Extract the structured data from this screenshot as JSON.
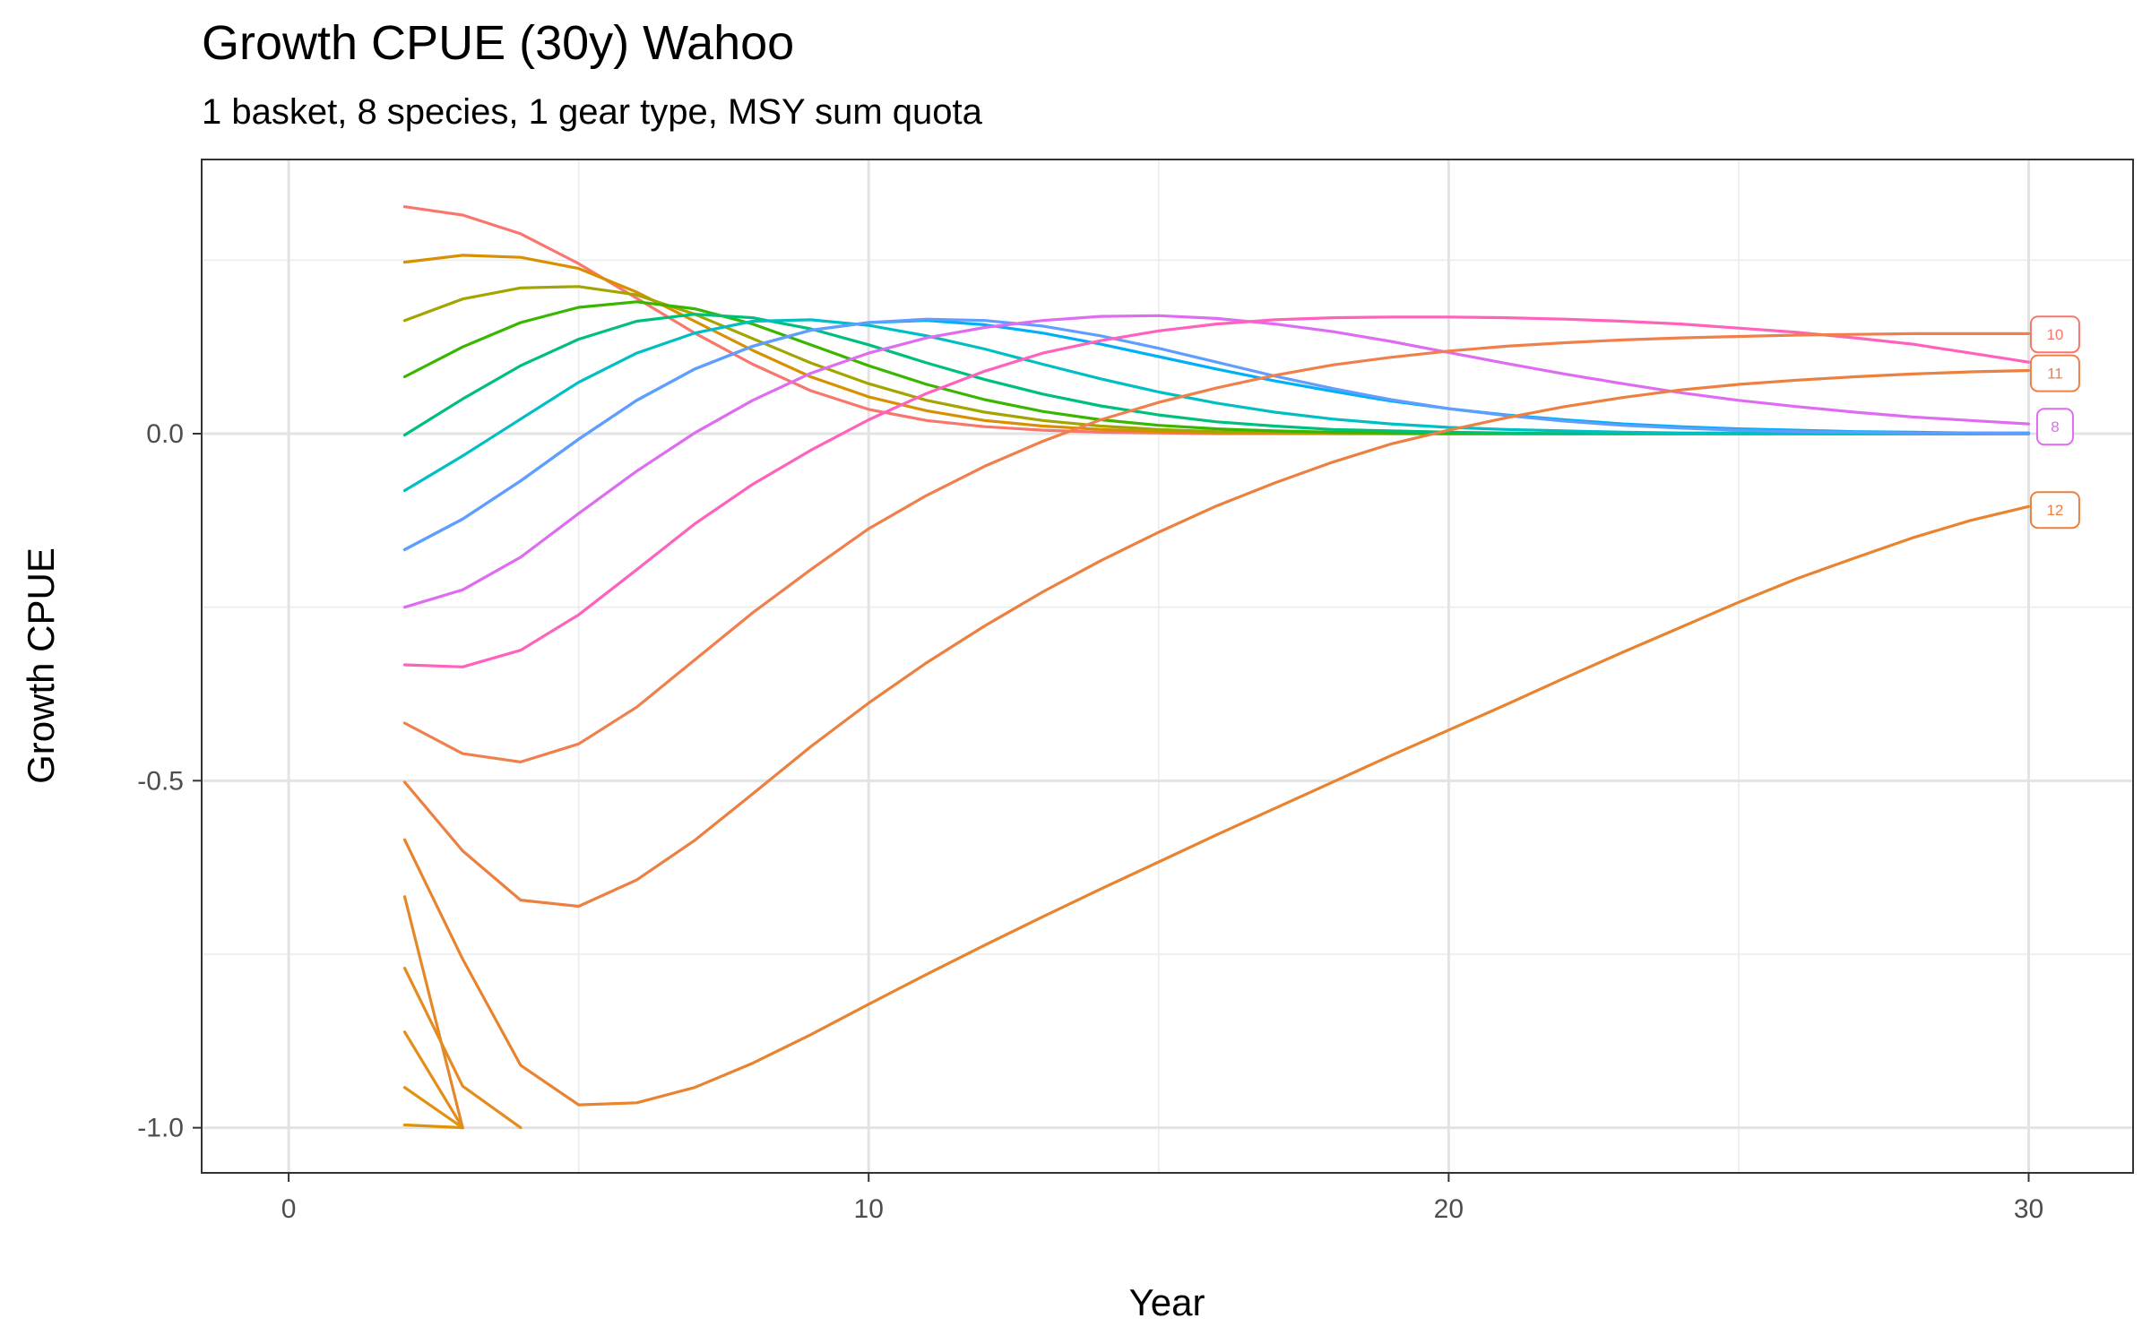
{
  "chart_data": {
    "type": "line",
    "title": "Growth CPUE (30y) Wahoo",
    "subtitle": "1 basket, 8 species, 1 gear type, MSY sum quota",
    "xlabel": "Year",
    "ylabel": "Growth CPUE",
    "xlim": [
      -1.5,
      31.8
    ],
    "ylim": [
      -1.065,
      0.395
    ],
    "x_ticks": [
      0,
      10,
      20,
      30
    ],
    "x_tick_labels": [
      "0",
      "10",
      "20",
      "30"
    ],
    "y_ticks": [
      -1.0,
      -0.5,
      0.0
    ],
    "y_tick_labels": [
      "-1.0",
      "-0.5",
      "0.0"
    ],
    "grid": true,
    "legend": "none",
    "end_labels": [
      {
        "text": "10",
        "x": 30.3,
        "y": 0.143,
        "color": "#F8766D"
      },
      {
        "text": "11",
        "x": 30.3,
        "y": 0.087,
        "color": "#EF7F4B"
      },
      {
        "text": "8",
        "x": 30.3,
        "y": 0.01,
        "color": "#DE6CF1"
      },
      {
        "text": "12",
        "x": 30.3,
        "y": -0.11,
        "color": "#EB8040"
      }
    ],
    "series": [
      {
        "color": "#F8766D",
        "x": [
          2,
          3,
          4,
          5,
          6,
          7,
          8,
          9,
          10,
          11,
          12,
          13,
          14,
          15,
          16,
          17,
          18,
          19,
          20,
          21,
          22,
          23,
          24,
          25,
          26,
          27,
          28,
          29,
          30
        ],
        "values": [
          0.327,
          0.315,
          0.288,
          0.245,
          0.195,
          0.145,
          0.1,
          0.062,
          0.035,
          0.019,
          0.01,
          0.005,
          0.002,
          0.001,
          0.0,
          0.0,
          0,
          0,
          0,
          0,
          0,
          0,
          0,
          0,
          0,
          0,
          0,
          0,
          0
        ]
      },
      {
        "color": "#D89000",
        "x": [
          2,
          3,
          4,
          5,
          6,
          7,
          8,
          9,
          10,
          11,
          12,
          13,
          14,
          15,
          16,
          17,
          18,
          19,
          20,
          21,
          22,
          23,
          24,
          25,
          26,
          27,
          28,
          29,
          30
        ],
        "values": [
          0.247,
          0.257,
          0.254,
          0.238,
          0.204,
          0.162,
          0.12,
          0.082,
          0.053,
          0.033,
          0.019,
          0.011,
          0.006,
          0.003,
          0.001,
          0.001,
          0.0,
          0,
          0,
          0,
          0,
          0,
          0,
          0,
          0,
          0,
          0,
          0,
          0
        ]
      },
      {
        "color": "#A3A500",
        "x": [
          2,
          3,
          4,
          5,
          6,
          7,
          8,
          9,
          10,
          11,
          12,
          13,
          14,
          15,
          16,
          17,
          18,
          19,
          20,
          21,
          22,
          23,
          24,
          25,
          26,
          27,
          28,
          29,
          30
        ],
        "values": [
          0.163,
          0.194,
          0.21,
          0.212,
          0.2,
          0.172,
          0.137,
          0.102,
          0.072,
          0.048,
          0.031,
          0.019,
          0.011,
          0.006,
          0.003,
          0.002,
          0.001,
          0.0,
          0,
          0,
          0,
          0,
          0,
          0,
          0,
          0,
          0,
          0,
          0
        ]
      },
      {
        "color": "#39B600",
        "x": [
          2,
          3,
          4,
          5,
          6,
          7,
          8,
          9,
          10,
          11,
          12,
          13,
          14,
          15,
          16,
          17,
          18,
          19,
          20,
          21,
          22,
          23,
          24,
          25,
          26,
          27,
          28,
          29,
          30
        ],
        "values": [
          0.082,
          0.125,
          0.16,
          0.182,
          0.19,
          0.18,
          0.158,
          0.128,
          0.098,
          0.071,
          0.049,
          0.032,
          0.02,
          0.012,
          0.007,
          0.004,
          0.002,
          0.001,
          0.0,
          0,
          0,
          0,
          0,
          0,
          0,
          0,
          0,
          0,
          0
        ]
      },
      {
        "color": "#00BF7D",
        "x": [
          2,
          3,
          4,
          5,
          6,
          7,
          8,
          9,
          10,
          11,
          12,
          13,
          14,
          15,
          16,
          17,
          18,
          19,
          20,
          21,
          22,
          23,
          24,
          25,
          26,
          27,
          28,
          29,
          30
        ],
        "values": [
          -0.002,
          0.05,
          0.098,
          0.136,
          0.162,
          0.172,
          0.167,
          0.151,
          0.128,
          0.102,
          0.078,
          0.057,
          0.04,
          0.027,
          0.017,
          0.011,
          0.006,
          0.004,
          0.002,
          0.001,
          0.0,
          0,
          0,
          0,
          0,
          0,
          0,
          0,
          0
        ]
      },
      {
        "color": "#00BFC4",
        "x": [
          2,
          3,
          4,
          5,
          6,
          7,
          8,
          9,
          10,
          11,
          12,
          13,
          14,
          15,
          16,
          17,
          18,
          19,
          20,
          21,
          22,
          23,
          24,
          25,
          26,
          27,
          28,
          29,
          30
        ],
        "values": [
          -0.082,
          -0.032,
          0.021,
          0.074,
          0.116,
          0.145,
          0.162,
          0.164,
          0.156,
          0.141,
          0.122,
          0.1,
          0.079,
          0.06,
          0.044,
          0.031,
          0.021,
          0.014,
          0.009,
          0.006,
          0.004,
          0.002,
          0.001,
          0.001,
          0.0,
          0,
          0,
          0,
          0
        ]
      },
      {
        "color": "#00B0F6",
        "x": [
          2,
          3,
          4,
          5,
          6,
          7,
          8,
          9,
          10,
          11,
          12,
          13,
          14,
          15,
          16,
          17,
          18,
          19,
          20,
          21,
          22,
          23,
          24,
          25,
          26,
          27,
          28,
          29,
          30
        ],
        "values": [
          -0.167,
          -0.123,
          -0.068,
          -0.008,
          0.048,
          0.093,
          0.126,
          0.149,
          0.16,
          0.163,
          0.157,
          0.145,
          0.129,
          0.111,
          0.093,
          0.076,
          0.061,
          0.047,
          0.036,
          0.027,
          0.02,
          0.014,
          0.01,
          0.007,
          0.005,
          0.003,
          0.002,
          0.001,
          0.001
        ]
      },
      {
        "color": "#619CFF",
        "x": [
          2,
          3,
          4,
          5,
          6,
          7,
          8,
          9,
          10,
          11,
          12,
          13,
          14,
          15,
          16,
          17,
          18,
          19,
          20,
          21,
          22,
          23,
          24,
          25,
          26,
          27,
          28,
          29,
          30
        ],
        "values": [
          -0.167,
          -0.123,
          -0.068,
          -0.008,
          0.048,
          0.093,
          0.126,
          0.149,
          0.16,
          0.165,
          0.163,
          0.155,
          0.141,
          0.123,
          0.103,
          0.083,
          0.065,
          0.049,
          0.036,
          0.026,
          0.018,
          0.012,
          0.008,
          0.005,
          0.003,
          0.002,
          0.001,
          0.001,
          0.0
        ]
      },
      {
        "color": "#DE6CF1",
        "x": [
          2,
          3,
          4,
          5,
          6,
          7,
          8,
          9,
          10,
          11,
          12,
          13,
          14,
          15,
          16,
          17,
          18,
          19,
          20,
          21,
          22,
          23,
          24,
          25,
          26,
          27,
          28,
          29,
          30
        ],
        "values": [
          -0.25,
          -0.225,
          -0.178,
          -0.115,
          -0.054,
          0.001,
          0.048,
          0.087,
          0.116,
          0.138,
          0.153,
          0.163,
          0.169,
          0.17,
          0.166,
          0.158,
          0.147,
          0.133,
          0.117,
          0.101,
          0.086,
          0.072,
          0.059,
          0.048,
          0.039,
          0.031,
          0.024,
          0.019,
          0.014
        ]
      },
      {
        "color": "#FF62BC",
        "x": [
          2,
          3,
          4,
          5,
          6,
          7,
          8,
          9,
          10,
          11,
          12,
          13,
          14,
          15,
          16,
          17,
          18,
          19,
          20,
          21,
          22,
          23,
          24,
          25,
          26,
          27,
          28,
          29,
          30
        ],
        "values": [
          -0.333,
          -0.336,
          -0.312,
          -0.261,
          -0.196,
          -0.13,
          -0.073,
          -0.024,
          0.02,
          0.058,
          0.09,
          0.116,
          0.134,
          0.148,
          0.158,
          0.164,
          0.167,
          0.168,
          0.168,
          0.167,
          0.165,
          0.162,
          0.158,
          0.152,
          0.146,
          0.138,
          0.129,
          0.116,
          0.103
        ]
      },
      {
        "color": "#EF7F4B",
        "x": [
          2,
          3,
          4,
          5,
          6,
          7,
          8,
          9,
          10,
          11,
          12,
          13,
          14,
          15,
          16,
          17,
          18,
          19,
          20,
          21,
          22,
          23,
          24,
          25,
          26,
          27,
          28,
          29,
          30
        ],
        "values": [
          -0.417,
          -0.461,
          -0.473,
          -0.447,
          -0.394,
          -0.326,
          -0.258,
          -0.196,
          -0.137,
          -0.089,
          -0.047,
          -0.011,
          0.02,
          0.045,
          0.066,
          0.084,
          0.099,
          0.11,
          0.119,
          0.126,
          0.131,
          0.135,
          0.138,
          0.14,
          0.142,
          0.143,
          0.144,
          0.144,
          0.144
        ]
      },
      {
        "color": "#EB8040",
        "x": [
          2,
          3,
          4,
          5,
          6,
          7,
          8,
          9,
          10,
          11,
          12,
          13,
          14,
          15,
          16,
          17,
          18,
          19,
          20,
          21,
          22,
          23,
          24,
          25,
          26,
          27,
          28,
          29,
          30
        ],
        "values": [
          -0.502,
          -0.601,
          -0.672,
          -0.681,
          -0.643,
          -0.586,
          -0.519,
          -0.451,
          -0.388,
          -0.33,
          -0.277,
          -0.228,
          -0.183,
          -0.142,
          -0.104,
          -0.071,
          -0.041,
          -0.015,
          0.005,
          0.023,
          0.039,
          0.052,
          0.063,
          0.071,
          0.077,
          0.082,
          0.086,
          0.089,
          0.091
        ]
      },
      {
        "color": "#E8832F",
        "x": [
          2,
          3,
          4,
          5,
          6,
          7,
          8,
          9,
          10,
          11,
          12,
          13,
          14,
          15,
          16,
          17,
          18,
          19,
          20,
          21,
          22,
          23,
          24,
          25,
          26,
          27,
          28,
          29,
          30
        ],
        "values": [
          -0.585,
          -0.757,
          -0.91,
          -0.967,
          -0.964,
          -0.942,
          -0.907,
          -0.866,
          -0.822,
          -0.779,
          -0.737,
          -0.696,
          -0.656,
          -0.617,
          -0.578,
          -0.54,
          -0.502,
          -0.464,
          -0.427,
          -0.39,
          -0.352,
          -0.315,
          -0.279,
          -0.243,
          -0.209,
          -0.179,
          -0.15,
          -0.125,
          -0.105
        ]
      },
      {
        "color": "#E5882A",
        "x": [
          2,
          3
        ],
        "values": [
          -0.667,
          -1.0
        ]
      },
      {
        "color": "#E58B22",
        "x": [
          2,
          3,
          4
        ],
        "values": [
          -0.77,
          -0.94,
          -1.0
        ]
      },
      {
        "color": "#E28E18",
        "x": [
          2,
          3
        ],
        "values": [
          -0.862,
          -1.0
        ]
      },
      {
        "color": "#E09210",
        "x": [
          2,
          3
        ],
        "values": [
          -0.942,
          -1.0
        ]
      },
      {
        "color": "#DD9505",
        "x": [
          2,
          3
        ],
        "values": [
          -0.996,
          -1.0
        ]
      }
    ]
  }
}
